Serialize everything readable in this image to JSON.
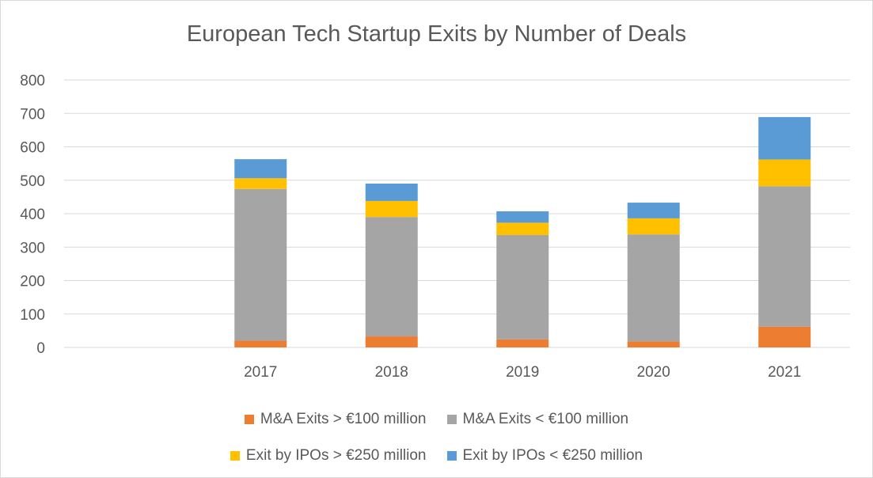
{
  "chart_data": {
    "type": "bar",
    "stacked": true,
    "title": "European Tech Startup Exits by Number of Deals",
    "xlabel": "",
    "ylabel": "",
    "categories": [
      "2017",
      "2018",
      "2019",
      "2020",
      "2021"
    ],
    "ylim": [
      0,
      800
    ],
    "yticks": [
      0,
      100,
      200,
      300,
      400,
      500,
      600,
      700,
      800
    ],
    "ytick_labels": [
      "0",
      "100",
      "200",
      "300",
      "400",
      "500",
      "600",
      "700",
      "800"
    ],
    "grid": true,
    "legend_position": "bottom",
    "series": [
      {
        "name": "M&A Exits >  €100 million",
        "color": "#ED7D31",
        "values": [
          20,
          33,
          24,
          18,
          62
        ]
      },
      {
        "name": "M&A Exits <  €100 million",
        "color": "#A5A5A5",
        "values": [
          454,
          357,
          312,
          320,
          420
        ]
      },
      {
        "name": "Exit by IPOs > €250 million",
        "color": "#FFC000",
        "values": [
          32,
          48,
          37,
          48,
          80
        ]
      },
      {
        "name": "Exit by IPOs < €250 million",
        "color": "#5B9BD5",
        "values": [
          57,
          52,
          34,
          47,
          127
        ]
      }
    ]
  }
}
